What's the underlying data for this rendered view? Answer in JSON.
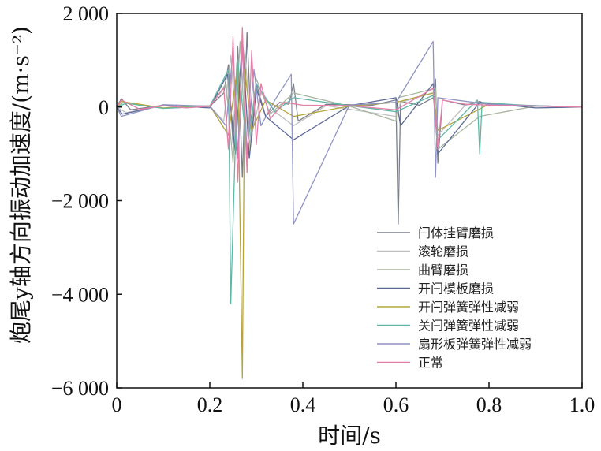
{
  "chart_data": {
    "type": "line",
    "ylabel": "炮尾y轴方向振动加速度/(m·s⁻²)",
    "xlabel": "时间/s",
    "xlim": [
      0,
      1.0
    ],
    "ylim": [
      -6000,
      2000
    ],
    "x_ticks": [
      {
        "value": 0,
        "label": "0"
      },
      {
        "value": 0.2,
        "label": "0.2"
      },
      {
        "value": 0.4,
        "label": "0.4"
      },
      {
        "value": 0.6,
        "label": "0.6"
      },
      {
        "value": 0.8,
        "label": "0.8"
      },
      {
        "value": 1.0,
        "label": "1.0"
      }
    ],
    "y_ticks": [
      {
        "value": 2000,
        "label": "2 000"
      },
      {
        "value": 0,
        "label": "0"
      },
      {
        "value": -2000,
        "label": "−2 000"
      },
      {
        "value": -4000,
        "label": "−4 000"
      },
      {
        "value": -6000,
        "label": "−6 000"
      }
    ],
    "grid": false,
    "legend_position": "lower-right",
    "series": [
      {
        "name": "闩体挂臂磨损",
        "color": "#7a7f8c",
        "x": [
          0,
          0.01,
          0.03,
          0.1,
          0.2,
          0.23,
          0.24,
          0.25,
          0.26,
          0.27,
          0.28,
          0.29,
          0.3,
          0.32,
          0.35,
          0.37,
          0.38,
          0.39,
          0.45,
          0.55,
          0.6,
          0.605,
          0.61,
          0.65,
          0.68,
          0.685,
          0.69,
          0.7,
          0.75,
          0.78,
          0.8,
          0.9,
          1.0
        ],
        "y": [
          0,
          180,
          -60,
          40,
          20,
          300,
          900,
          -800,
          1300,
          -1500,
          1600,
          -700,
          500,
          -200,
          100,
          60,
          500,
          -300,
          60,
          40,
          150,
          -2500,
          120,
          40,
          200,
          600,
          -1200,
          150,
          40,
          120,
          40,
          30,
          0
        ]
      },
      {
        "name": "滚轮磨损",
        "color": "#c0c0c0",
        "x": [
          0,
          0.02,
          0.1,
          0.2,
          0.23,
          0.245,
          0.26,
          0.275,
          0.29,
          0.31,
          0.34,
          0.38,
          0.45,
          0.6,
          0.61,
          0.68,
          0.69,
          0.75,
          0.8,
          0.9,
          1.0
        ],
        "y": [
          0,
          -120,
          30,
          20,
          -300,
          1100,
          -900,
          1200,
          -600,
          300,
          -100,
          -400,
          30,
          -200,
          100,
          300,
          -600,
          50,
          80,
          30,
          0
        ]
      },
      {
        "name": "曲臂磨损",
        "color": "#a8b5a0",
        "x": [
          0,
          0.015,
          0.1,
          0.2,
          0.235,
          0.25,
          0.265,
          0.28,
          0.3,
          0.33,
          0.38,
          0.5,
          0.6,
          0.605,
          0.685,
          0.69,
          0.78,
          0.9,
          1.0
        ],
        "y": [
          0,
          100,
          -30,
          10,
          500,
          -1200,
          1400,
          -1300,
          600,
          -150,
          300,
          20,
          -300,
          200,
          400,
          -900,
          -200,
          20,
          0
        ]
      },
      {
        "name": "开闩模板磨损",
        "color": "#5d6a96",
        "x": [
          0,
          0.012,
          0.1,
          0.2,
          0.238,
          0.255,
          0.27,
          0.285,
          0.3,
          0.32,
          0.38,
          0.5,
          0.6,
          0.61,
          0.68,
          0.69,
          0.78,
          0.9,
          1.0
        ],
        "y": [
          0,
          -150,
          40,
          -20,
          700,
          -1000,
          1500,
          -1100,
          400,
          -200,
          -700,
          30,
          200,
          -400,
          500,
          -1000,
          100,
          -20,
          0
        ]
      },
      {
        "name": "开闩弹簧弹性减弱",
        "color": "#b5a53d",
        "x": [
          0,
          0.01,
          0.1,
          0.2,
          0.24,
          0.26,
          0.27,
          0.275,
          0.29,
          0.32,
          0.38,
          0.5,
          0.6,
          0.68,
          0.69,
          0.8,
          0.9,
          1.0
        ],
        "y": [
          0,
          120,
          -20,
          30,
          -600,
          900,
          -5800,
          800,
          -500,
          150,
          -200,
          20,
          100,
          300,
          -500,
          60,
          30,
          0
        ]
      },
      {
        "name": "关闩弹簧弹性减弱",
        "color": "#5fb8a7",
        "x": [
          0,
          0.02,
          0.1,
          0.2,
          0.24,
          0.245,
          0.26,
          0.28,
          0.3,
          0.34,
          0.38,
          0.5,
          0.6,
          0.68,
          0.69,
          0.775,
          0.78,
          0.785,
          0.9,
          1.0
        ],
        "y": [
          0,
          80,
          -30,
          20,
          800,
          -4200,
          1000,
          -900,
          500,
          -100,
          200,
          30,
          -100,
          250,
          -700,
          150,
          -1000,
          100,
          20,
          0
        ]
      },
      {
        "name": "扇形板弹簧弹性减弱",
        "color": "#8f93c4",
        "x": [
          0,
          0.01,
          0.1,
          0.2,
          0.235,
          0.25,
          0.26,
          0.27,
          0.28,
          0.295,
          0.31,
          0.34,
          0.375,
          0.38,
          0.5,
          0.6,
          0.68,
          0.685,
          0.69,
          0.8,
          0.9,
          1.0
        ],
        "y": [
          0,
          -200,
          50,
          20,
          -400,
          1200,
          -1100,
          1300,
          -1000,
          800,
          -400,
          150,
          700,
          -2500,
          40,
          100,
          1400,
          -1500,
          200,
          60,
          30,
          0
        ]
      },
      {
        "name": "正常",
        "color": "#e37fa8",
        "x": [
          0,
          0.01,
          0.05,
          0.1,
          0.15,
          0.2,
          0.23,
          0.24,
          0.25,
          0.26,
          0.27,
          0.28,
          0.29,
          0.3,
          0.31,
          0.33,
          0.36,
          0.4,
          0.5,
          0.6,
          0.68,
          0.69,
          0.7,
          0.75,
          0.8,
          0.9,
          1.0
        ],
        "y": [
          0,
          150,
          -50,
          30,
          -20,
          20,
          400,
          -900,
          1500,
          -1600,
          1700,
          -1400,
          1200,
          -800,
          500,
          -250,
          100,
          40,
          30,
          -60,
          400,
          -900,
          150,
          60,
          40,
          20,
          0
        ]
      }
    ]
  }
}
